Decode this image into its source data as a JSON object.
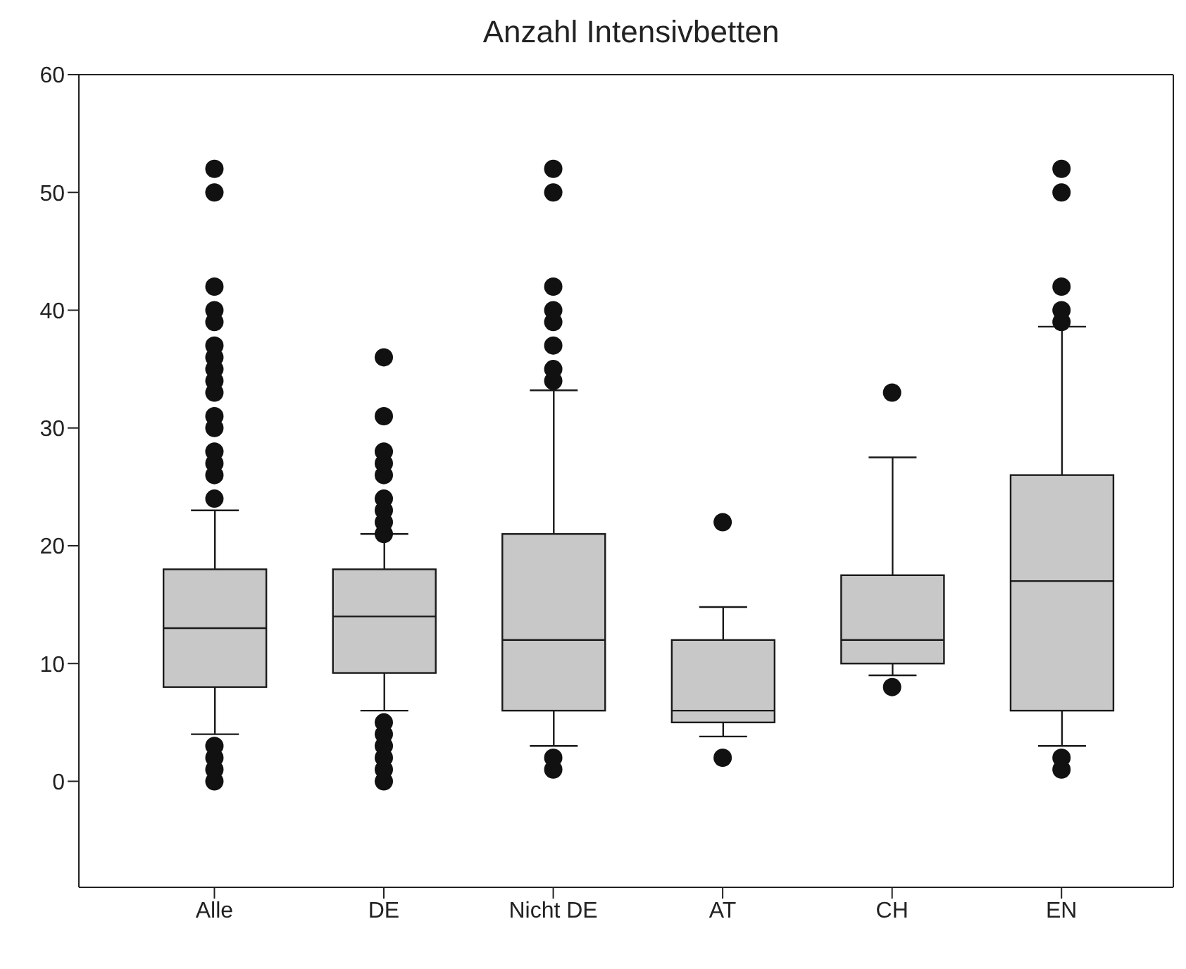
{
  "chart_data": {
    "type": "box",
    "title": "Anzahl Intensivbetten",
    "categories": [
      "Alle",
      "DE",
      "Nicht DE",
      "AT",
      "CH",
      "EN"
    ],
    "color": "#c8c8c8",
    "boxes": [
      {
        "low": 4,
        "q1": 8,
        "median": 13,
        "q3": 18,
        "high": 23,
        "outliers": [
          0,
          1,
          2,
          3,
          24,
          26,
          27,
          28,
          30,
          31,
          33,
          34,
          35,
          36,
          37,
          39,
          40,
          42,
          50,
          52
        ]
      },
      {
        "low": 6,
        "q1": 9.2,
        "median": 14,
        "q3": 18,
        "high": 21,
        "outliers": [
          0,
          1,
          2,
          3,
          4,
          5,
          21,
          22,
          23,
          24,
          26,
          27,
          28,
          31,
          36
        ]
      },
      {
        "low": 3,
        "q1": 6,
        "median": 12,
        "q3": 21,
        "high": 33.2,
        "outliers": [
          1,
          2,
          34,
          35,
          37,
          39,
          40,
          42,
          50,
          52
        ]
      },
      {
        "low": 3.8,
        "q1": 5,
        "median": 6,
        "q3": 12,
        "high": 14.8,
        "outliers": [
          2,
          22
        ]
      },
      {
        "low": 9,
        "q1": 10,
        "median": 12,
        "q3": 17.5,
        "high": 27.5,
        "outliers": [
          8,
          33
        ]
      },
      {
        "low": 3,
        "q1": 6,
        "median": 17,
        "q3": 26,
        "high": 38.6,
        "outliers": [
          1,
          2,
          39,
          40,
          42,
          50,
          52
        ]
      }
    ],
    "ylim": [
      -9,
      60
    ],
    "yticks": [
      0,
      10,
      20,
      30,
      40,
      50,
      60
    ],
    "grid": false,
    "marker": "circle"
  }
}
